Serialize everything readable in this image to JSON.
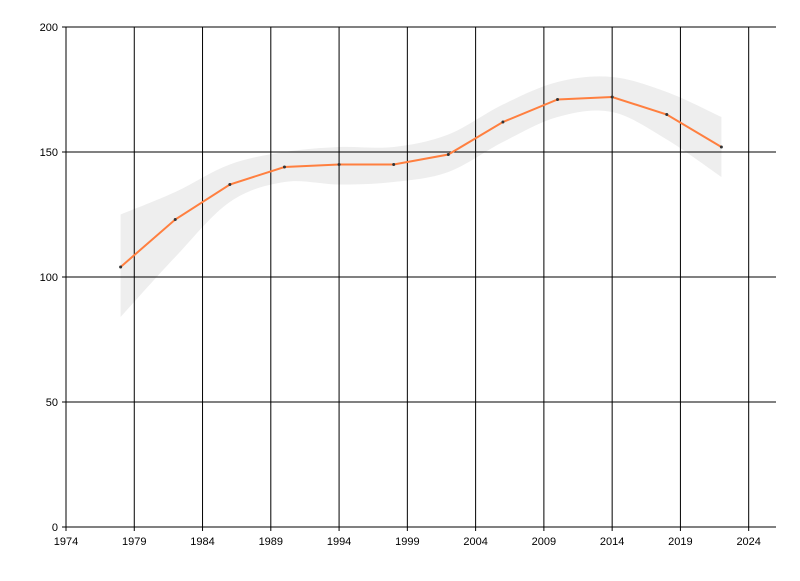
{
  "chart_data": {
    "type": "line",
    "title": "",
    "xlabel": "",
    "ylabel": "",
    "xlim": [
      1974,
      2026
    ],
    "ylim": [
      0,
      200
    ],
    "xticks": [
      1974,
      1979,
      1984,
      1989,
      1994,
      1999,
      2004,
      2009,
      2014,
      2019,
      2024
    ],
    "yticks": [
      0,
      50,
      100,
      150,
      200
    ],
    "grid": true,
    "line_color": "#ff7f3f",
    "band_color": "#eeeeee",
    "marker_color": "#333333",
    "series": [
      {
        "x": [
          1978,
          1982,
          1986,
          1990,
          1994,
          1998,
          2002,
          2006,
          2010,
          2014,
          2018,
          2022
        ],
        "values": [
          104,
          123,
          137,
          144,
          145,
          145,
          149,
          162,
          171,
          172,
          165,
          152
        ]
      }
    ],
    "band": {
      "x": [
        1978,
        1982,
        1986,
        1990,
        1994,
        1998,
        2002,
        2006,
        2010,
        2014,
        2018,
        2022
      ],
      "upper": [
        125,
        134,
        145,
        150,
        152,
        152,
        157,
        169,
        178,
        180,
        174,
        164
      ],
      "lower": [
        84,
        108,
        130,
        138,
        137,
        138,
        142,
        154,
        164,
        166,
        155,
        140
      ]
    }
  }
}
